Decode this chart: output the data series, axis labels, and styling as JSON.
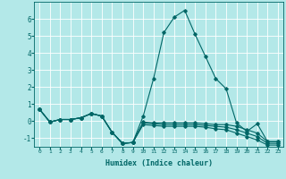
{
  "xlabel": "Humidex (Indice chaleur)",
  "background_color": "#b3e8e8",
  "grid_color": "#ffffff",
  "line_color": "#006666",
  "x": [
    0,
    1,
    2,
    3,
    4,
    5,
    6,
    7,
    8,
    9,
    10,
    11,
    12,
    13,
    14,
    15,
    16,
    17,
    18,
    19,
    20,
    21,
    22,
    23
  ],
  "series": [
    [
      0.7,
      -0.05,
      0.1,
      0.1,
      0.2,
      0.45,
      0.3,
      -0.65,
      -1.3,
      -1.25,
      0.3,
      2.5,
      5.2,
      6.1,
      6.5,
      5.1,
      3.8,
      2.5,
      1.9,
      -0.1,
      -0.6,
      -0.15,
      -1.2,
      -1.2
    ],
    [
      0.7,
      -0.05,
      0.1,
      0.1,
      0.2,
      0.45,
      0.3,
      -0.65,
      -1.3,
      -1.25,
      -0.05,
      -0.1,
      -0.1,
      -0.1,
      -0.1,
      -0.1,
      -0.15,
      -0.2,
      -0.2,
      -0.3,
      -0.5,
      -0.7,
      -1.2,
      -1.2
    ],
    [
      0.7,
      -0.05,
      0.1,
      0.1,
      0.2,
      0.45,
      0.3,
      -0.65,
      -1.3,
      -1.25,
      -0.1,
      -0.15,
      -0.2,
      -0.2,
      -0.2,
      -0.2,
      -0.25,
      -0.3,
      -0.35,
      -0.5,
      -0.7,
      -0.9,
      -1.3,
      -1.3
    ],
    [
      0.7,
      -0.05,
      0.1,
      0.1,
      0.2,
      0.45,
      0.3,
      -0.65,
      -1.3,
      -1.25,
      -0.2,
      -0.25,
      -0.3,
      -0.3,
      -0.3,
      -0.3,
      -0.35,
      -0.45,
      -0.5,
      -0.7,
      -0.9,
      -1.1,
      -1.4,
      -1.4
    ]
  ],
  "ylim": [
    -1.5,
    7.0
  ],
  "xlim": [
    -0.5,
    23.5
  ],
  "yticks": [
    -1,
    0,
    1,
    2,
    3,
    4,
    5,
    6
  ],
  "xticks": [
    0,
    1,
    2,
    3,
    4,
    5,
    6,
    7,
    8,
    9,
    10,
    11,
    12,
    13,
    14,
    15,
    16,
    17,
    18,
    19,
    20,
    21,
    22,
    23
  ],
  "figsize": [
    3.2,
    2.0
  ],
  "dpi": 100
}
